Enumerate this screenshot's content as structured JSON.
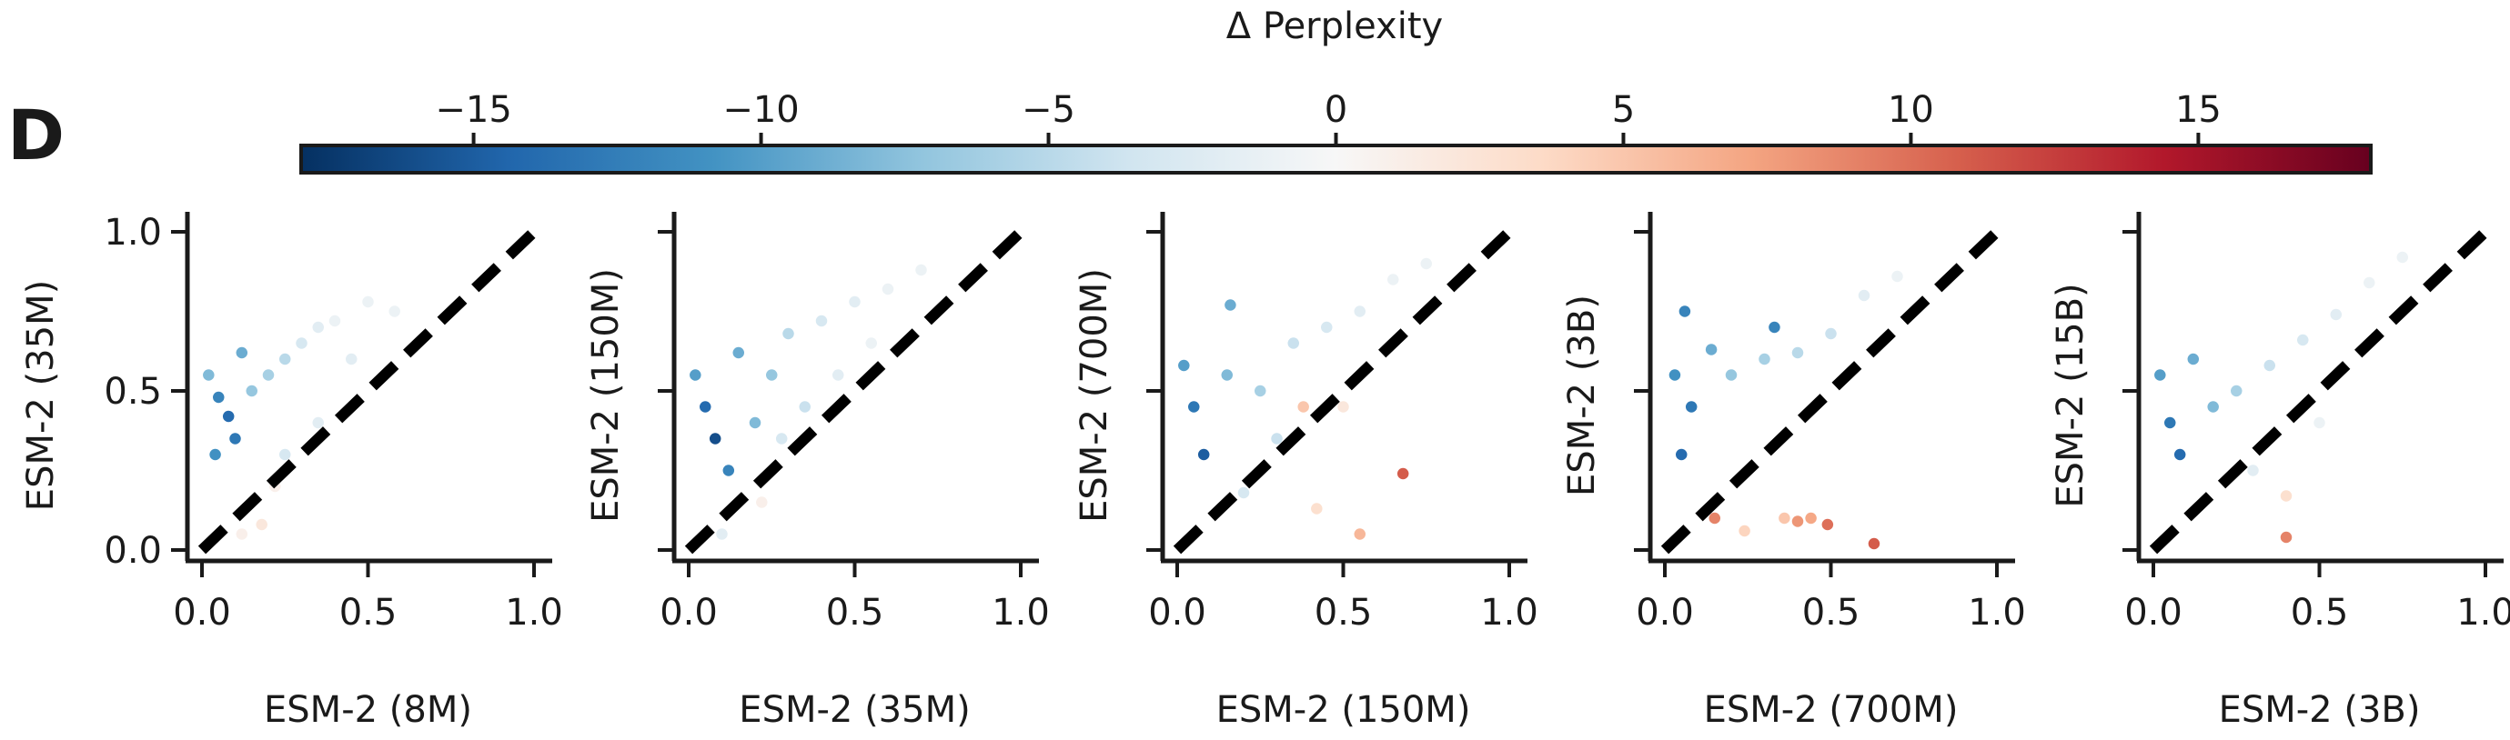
{
  "figure": {
    "panel_label": "D"
  },
  "colorbar": {
    "label": "Δ Perplexity",
    "range": [
      -18,
      18
    ],
    "ticks": [
      -15,
      -10,
      -5,
      0,
      5,
      10,
      15
    ],
    "tick_labels": [
      "−15",
      "−10",
      "−5",
      "0",
      "5",
      "10",
      "15"
    ],
    "colormap": "RdBu_r",
    "stops": [
      "#053061",
      "#2166ac",
      "#4393c3",
      "#92c5de",
      "#d1e5f0",
      "#f7f7f7",
      "#fddbc7",
      "#f4a582",
      "#d6604d",
      "#b2182b",
      "#67001f"
    ]
  },
  "chart_data": [
    {
      "type": "scatter",
      "xlabel": "ESM-2 (8M)",
      "ylabel": "ESM-2 (35M)",
      "xlim": [
        0,
        1
      ],
      "ylim": [
        0,
        1
      ],
      "xticks": [
        0.0,
        0.5,
        1.0
      ],
      "yticks": [
        0.0,
        0.5,
        1.0
      ],
      "xtick_labels": [
        "0.0",
        "0.5",
        "1.0"
      ],
      "ytick_labels": [
        "0.0",
        "0.5",
        "1.0"
      ],
      "diagonal": "y = x dashed black",
      "grid": false,
      "points": [
        {
          "x": 0.02,
          "y": 0.55,
          "delta": -8
        },
        {
          "x": 0.05,
          "y": 0.48,
          "delta": -12
        },
        {
          "x": 0.08,
          "y": 0.42,
          "delta": -14
        },
        {
          "x": 0.12,
          "y": 0.62,
          "delta": -9
        },
        {
          "x": 0.04,
          "y": 0.3,
          "delta": -11
        },
        {
          "x": 0.1,
          "y": 0.35,
          "delta": -13
        },
        {
          "x": 0.15,
          "y": 0.5,
          "delta": -7
        },
        {
          "x": 0.2,
          "y": 0.55,
          "delta": -6
        },
        {
          "x": 0.25,
          "y": 0.6,
          "delta": -5
        },
        {
          "x": 0.3,
          "y": 0.65,
          "delta": -3
        },
        {
          "x": 0.35,
          "y": 0.7,
          "delta": -2
        },
        {
          "x": 0.4,
          "y": 0.72,
          "delta": -1
        },
        {
          "x": 0.5,
          "y": 0.78,
          "delta": -1
        },
        {
          "x": 0.45,
          "y": 0.6,
          "delta": -2
        },
        {
          "x": 0.25,
          "y": 0.3,
          "delta": -3
        },
        {
          "x": 0.22,
          "y": 0.2,
          "delta": 1
        },
        {
          "x": 0.18,
          "y": 0.08,
          "delta": 2
        },
        {
          "x": 0.12,
          "y": 0.05,
          "delta": 1
        },
        {
          "x": 0.35,
          "y": 0.4,
          "delta": -2
        },
        {
          "x": 0.58,
          "y": 0.75,
          "delta": -1
        }
      ]
    },
    {
      "type": "scatter",
      "xlabel": "ESM-2 (35M)",
      "ylabel": "ESM-2 (150M)",
      "xlim": [
        0,
        1
      ],
      "ylim": [
        0,
        1
      ],
      "xticks": [
        0.0,
        0.5,
        1.0
      ],
      "yticks": [
        0.0,
        0.5,
        1.0
      ],
      "xtick_labels": [
        "0.0",
        "0.5",
        "1.0"
      ],
      "ytick_labels": [
        "0.0",
        "0.5",
        "1.0"
      ],
      "diagonal": "y = x dashed black",
      "grid": false,
      "points": [
        {
          "x": 0.02,
          "y": 0.55,
          "delta": -10
        },
        {
          "x": 0.05,
          "y": 0.45,
          "delta": -14
        },
        {
          "x": 0.08,
          "y": 0.35,
          "delta": -16
        },
        {
          "x": 0.15,
          "y": 0.62,
          "delta": -9
        },
        {
          "x": 0.12,
          "y": 0.25,
          "delta": -12
        },
        {
          "x": 0.25,
          "y": 0.55,
          "delta": -7
        },
        {
          "x": 0.3,
          "y": 0.68,
          "delta": -5
        },
        {
          "x": 0.4,
          "y": 0.72,
          "delta": -3
        },
        {
          "x": 0.5,
          "y": 0.78,
          "delta": -2
        },
        {
          "x": 0.6,
          "y": 0.82,
          "delta": -1
        },
        {
          "x": 0.7,
          "y": 0.88,
          "delta": -1
        },
        {
          "x": 0.35,
          "y": 0.45,
          "delta": -4
        },
        {
          "x": 0.22,
          "y": 0.15,
          "delta": 1
        },
        {
          "x": 0.1,
          "y": 0.05,
          "delta": -2
        },
        {
          "x": 0.45,
          "y": 0.55,
          "delta": -2
        },
        {
          "x": 0.2,
          "y": 0.4,
          "delta": -8
        },
        {
          "x": 0.28,
          "y": 0.35,
          "delta": -3
        },
        {
          "x": 0.55,
          "y": 0.65,
          "delta": -1
        }
      ]
    },
    {
      "type": "scatter",
      "xlabel": "ESM-2 (150M)",
      "ylabel": "ESM-2 (700M)",
      "xlim": [
        0,
        1
      ],
      "ylim": [
        0,
        1
      ],
      "xticks": [
        0.0,
        0.5,
        1.0
      ],
      "yticks": [
        0.0,
        0.5,
        1.0
      ],
      "xtick_labels": [
        "0.0",
        "0.5",
        "1.0"
      ],
      "ytick_labels": [
        "0.0",
        "0.5",
        "1.0"
      ],
      "diagonal": "y = x dashed black",
      "grid": false,
      "points": [
        {
          "x": 0.02,
          "y": 0.58,
          "delta": -10
        },
        {
          "x": 0.05,
          "y": 0.45,
          "delta": -13
        },
        {
          "x": 0.08,
          "y": 0.3,
          "delta": -15
        },
        {
          "x": 0.16,
          "y": 0.77,
          "delta": -9
        },
        {
          "x": 0.15,
          "y": 0.55,
          "delta": -8
        },
        {
          "x": 0.25,
          "y": 0.5,
          "delta": -6
        },
        {
          "x": 0.35,
          "y": 0.65,
          "delta": -4
        },
        {
          "x": 0.45,
          "y": 0.7,
          "delta": -3
        },
        {
          "x": 0.55,
          "y": 0.75,
          "delta": -2
        },
        {
          "x": 0.65,
          "y": 0.85,
          "delta": -1
        },
        {
          "x": 0.75,
          "y": 0.9,
          "delta": -1
        },
        {
          "x": 0.38,
          "y": 0.45,
          "delta": 5
        },
        {
          "x": 0.68,
          "y": 0.24,
          "delta": 11
        },
        {
          "x": 0.55,
          "y": 0.05,
          "delta": 6
        },
        {
          "x": 0.42,
          "y": 0.13,
          "delta": 3
        },
        {
          "x": 0.2,
          "y": 0.18,
          "delta": -3
        },
        {
          "x": 0.3,
          "y": 0.35,
          "delta": -4
        },
        {
          "x": 0.5,
          "y": 0.45,
          "delta": 2
        }
      ]
    },
    {
      "type": "scatter",
      "xlabel": "ESM-2 (700M)",
      "ylabel": "ESM-2 (3B)",
      "xlim": [
        0,
        1
      ],
      "ylim": [
        0,
        1
      ],
      "xticks": [
        0.0,
        0.5,
        1.0
      ],
      "yticks": [
        0.0,
        0.5,
        1.0
      ],
      "xtick_labels": [
        "0.0",
        "0.5",
        "1.0"
      ],
      "ytick_labels": [
        "0.0",
        "0.5",
        "1.0"
      ],
      "diagonal": "y = x dashed black",
      "grid": false,
      "points": [
        {
          "x": 0.06,
          "y": 0.75,
          "delta": -12
        },
        {
          "x": 0.03,
          "y": 0.55,
          "delta": -11
        },
        {
          "x": 0.08,
          "y": 0.45,
          "delta": -13
        },
        {
          "x": 0.05,
          "y": 0.3,
          "delta": -14
        },
        {
          "x": 0.14,
          "y": 0.63,
          "delta": -9
        },
        {
          "x": 0.2,
          "y": 0.55,
          "delta": -7
        },
        {
          "x": 0.3,
          "y": 0.6,
          "delta": -6
        },
        {
          "x": 0.4,
          "y": 0.62,
          "delta": -5
        },
        {
          "x": 0.33,
          "y": 0.7,
          "delta": -12
        },
        {
          "x": 0.5,
          "y": 0.68,
          "delta": -4
        },
        {
          "x": 0.6,
          "y": 0.8,
          "delta": -2
        },
        {
          "x": 0.7,
          "y": 0.86,
          "delta": -1
        },
        {
          "x": 0.63,
          "y": 0.02,
          "delta": 11
        },
        {
          "x": 0.49,
          "y": 0.08,
          "delta": 10
        },
        {
          "x": 0.4,
          "y": 0.09,
          "delta": 8
        },
        {
          "x": 0.36,
          "y": 0.1,
          "delta": 5
        },
        {
          "x": 0.15,
          "y": 0.1,
          "delta": 9
        },
        {
          "x": 0.24,
          "y": 0.06,
          "delta": 4
        },
        {
          "x": 0.44,
          "y": 0.1,
          "delta": 7
        }
      ]
    },
    {
      "type": "scatter",
      "xlabel": "ESM-2 (3B)",
      "ylabel": "ESM-2 (15B)",
      "xlim": [
        0,
        1
      ],
      "ylim": [
        0,
        1
      ],
      "xticks": [
        0.0,
        0.5,
        1.0
      ],
      "yticks": [
        0.0,
        0.5,
        1.0
      ],
      "xtick_labels": [
        "0.0",
        "0.5",
        "1.0"
      ],
      "ytick_labels": [
        "0.0",
        "0.5",
        "1.0"
      ],
      "diagonal": "y = x dashed black",
      "grid": false,
      "points": [
        {
          "x": 0.02,
          "y": 0.55,
          "delta": -10
        },
        {
          "x": 0.05,
          "y": 0.4,
          "delta": -13
        },
        {
          "x": 0.08,
          "y": 0.3,
          "delta": -14
        },
        {
          "x": 0.12,
          "y": 0.6,
          "delta": -9
        },
        {
          "x": 0.18,
          "y": 0.45,
          "delta": -8
        },
        {
          "x": 0.25,
          "y": 0.5,
          "delta": -6
        },
        {
          "x": 0.35,
          "y": 0.58,
          "delta": -4
        },
        {
          "x": 0.45,
          "y": 0.66,
          "delta": -3
        },
        {
          "x": 0.55,
          "y": 0.74,
          "delta": -2
        },
        {
          "x": 0.65,
          "y": 0.84,
          "delta": -1
        },
        {
          "x": 0.75,
          "y": 0.92,
          "delta": -1
        },
        {
          "x": 0.4,
          "y": 0.04,
          "delta": 9
        },
        {
          "x": 0.4,
          "y": 0.17,
          "delta": 3
        },
        {
          "x": 0.3,
          "y": 0.25,
          "delta": -2
        },
        {
          "x": 0.5,
          "y": 0.4,
          "delta": -1
        }
      ]
    }
  ]
}
